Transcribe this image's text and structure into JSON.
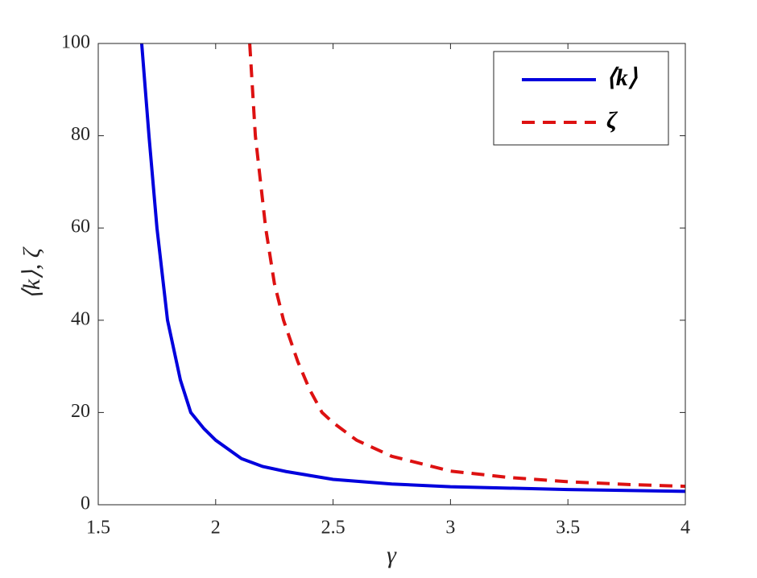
{
  "chart_data": {
    "type": "line",
    "x_label": "γ",
    "y_label": "⟨k⟩, ζ",
    "xlim": [
      1.5,
      4
    ],
    "ylim": [
      0,
      100
    ],
    "xticks": [
      1.5,
      2,
      2.5,
      3,
      3.5,
      4
    ],
    "yticks": [
      0,
      20,
      40,
      60,
      80,
      100
    ],
    "legend": "upper right",
    "series": [
      {
        "name": "⟨k⟩",
        "color": "#0000dd",
        "dash": "solid",
        "x": [
          1.685,
          1.716,
          1.75,
          1.795,
          1.85,
          1.894,
          1.95,
          2.0,
          2.11,
          2.2,
          2.3,
          2.5,
          2.75,
          3.0,
          3.5,
          4.0
        ],
        "values": [
          100,
          80,
          60,
          40,
          27,
          20,
          16.5,
          14,
          10,
          8.3,
          7.2,
          5.5,
          4.5,
          3.9,
          3.3,
          2.9
        ]
      },
      {
        "name": "ζ",
        "color": "#dd1111",
        "dash": "dashed",
        "x": [
          2.145,
          2.169,
          2.213,
          2.25,
          2.289,
          2.35,
          2.4,
          2.453,
          2.5,
          2.6,
          2.75,
          3.0,
          3.25,
          3.5,
          3.75,
          4.0
        ],
        "values": [
          100,
          80,
          60,
          48,
          40,
          31,
          25,
          20,
          17.8,
          14,
          10.5,
          7.3,
          5.9,
          5.0,
          4.4,
          4.0
        ]
      }
    ]
  }
}
